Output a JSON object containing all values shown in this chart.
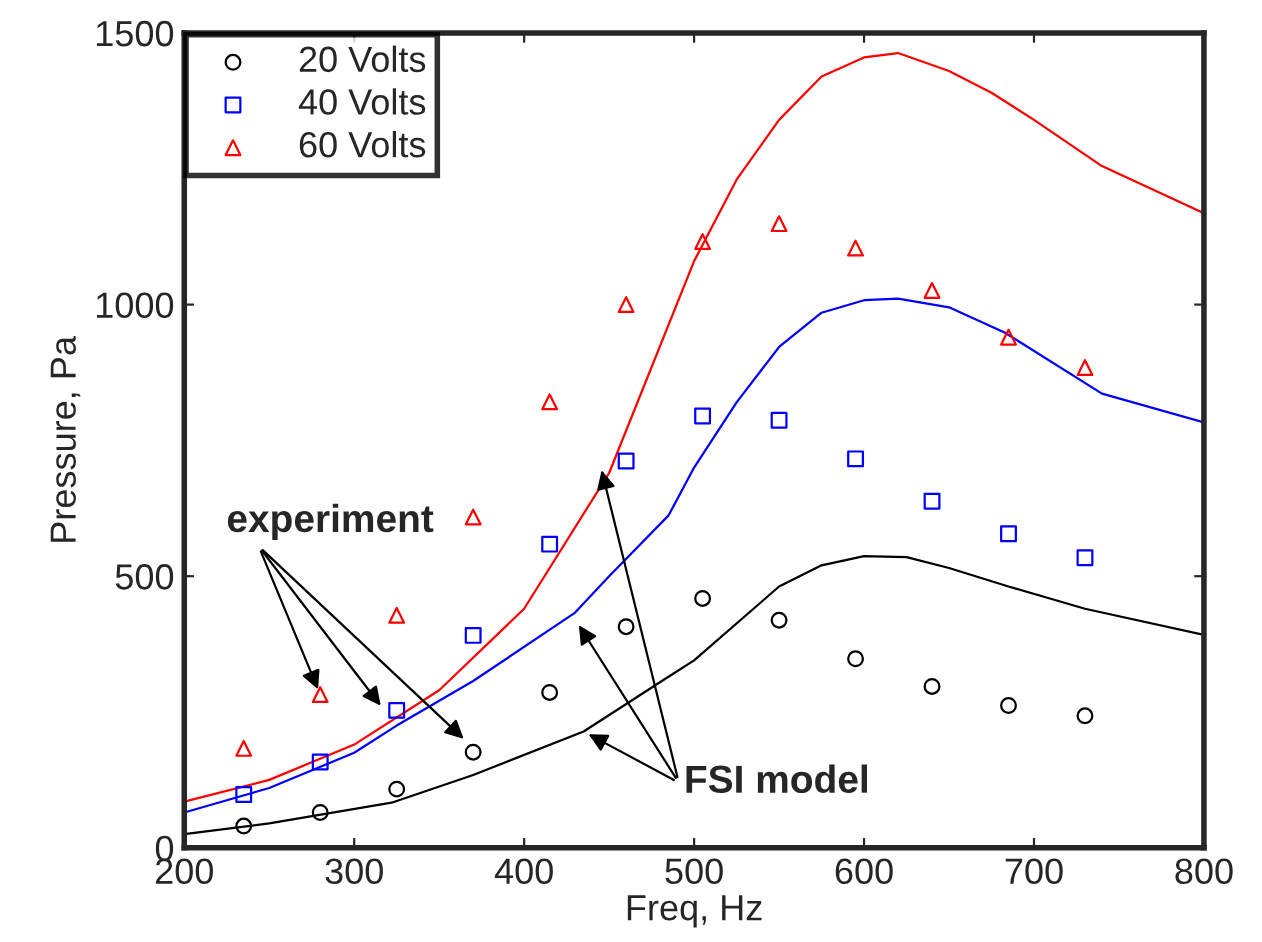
{
  "chart_data": {
    "type": "scatter",
    "xlabel": "Freq, Hz",
    "ylabel": "Pressure, Pa",
    "xlim": [
      200,
      800
    ],
    "xticks": [
      200,
      300,
      400,
      500,
      600,
      700,
      800
    ],
    "ylim": [
      0,
      1500
    ],
    "yticks": [
      0,
      500,
      1000,
      1500
    ],
    "grid": false,
    "legend": "top left",
    "series": [
      {
        "name": "20 Volts",
        "marker": "circle",
        "color": "#000000",
        "x": [
          235,
          280,
          325,
          370,
          415,
          460,
          505,
          550,
          595,
          640,
          685,
          730
        ],
        "values": [
          40,
          65,
          108,
          176,
          286,
          407,
          459,
          419,
          348,
          297,
          262,
          243
        ]
      },
      {
        "name": "40 Volts",
        "marker": "square",
        "color": "#0000ff",
        "x": [
          235,
          280,
          325,
          370,
          415,
          460,
          505,
          550,
          595,
          640,
          685,
          730
        ],
        "values": [
          98,
          158,
          253,
          391,
          559,
          712,
          795,
          787,
          716,
          638,
          578,
          534
        ]
      },
      {
        "name": "60 Volts",
        "marker": "triangle",
        "color": "#ff0000",
        "x": [
          235,
          280,
          325,
          370,
          415,
          460,
          505,
          550,
          595,
          640,
          685,
          730
        ],
        "values": [
          183,
          282,
          428,
          609,
          821,
          1000,
          1116,
          1149,
          1104,
          1026,
          940,
          884
        ]
      },
      {
        "type": "line",
        "color": "#000000",
        "x": [
          200,
          250,
          322,
          370,
          435,
          484,
          500,
          550,
          575,
          600,
          625,
          650,
          685,
          730,
          800
        ],
        "values": [
          25,
          45,
          83,
          134,
          214,
          313,
          345,
          481,
          520,
          537,
          535,
          515,
          481,
          440,
          392
        ]
      },
      {
        "type": "line",
        "color": "#0000ff",
        "x": [
          200,
          250,
          300,
          325,
          370,
          430,
          450,
          485,
          500,
          525,
          550,
          575,
          600,
          620,
          650,
          683,
          740,
          800
        ],
        "values": [
          65,
          110,
          175,
          225,
          307,
          433,
          500,
          612,
          700,
          820,
          922,
          985,
          1008,
          1011,
          995,
          948,
          836,
          783
        ]
      },
      {
        "type": "line",
        "color": "#ff0000",
        "x": [
          200,
          250,
          300,
          350,
          400,
          450,
          500,
          525,
          550,
          575,
          600,
          620,
          650,
          675,
          700,
          740,
          800
        ],
        "values": [
          85,
          125,
          190,
          290,
          440,
          690,
          1080,
          1230,
          1340,
          1420,
          1455,
          1463,
          1430,
          1390,
          1340,
          1255,
          1168
        ]
      }
    ],
    "annotations": [
      {
        "text": "experiment",
        "x": 280,
        "y": 282
      },
      {
        "text": "FSI model",
        "x": 435,
        "y": 214
      }
    ]
  }
}
